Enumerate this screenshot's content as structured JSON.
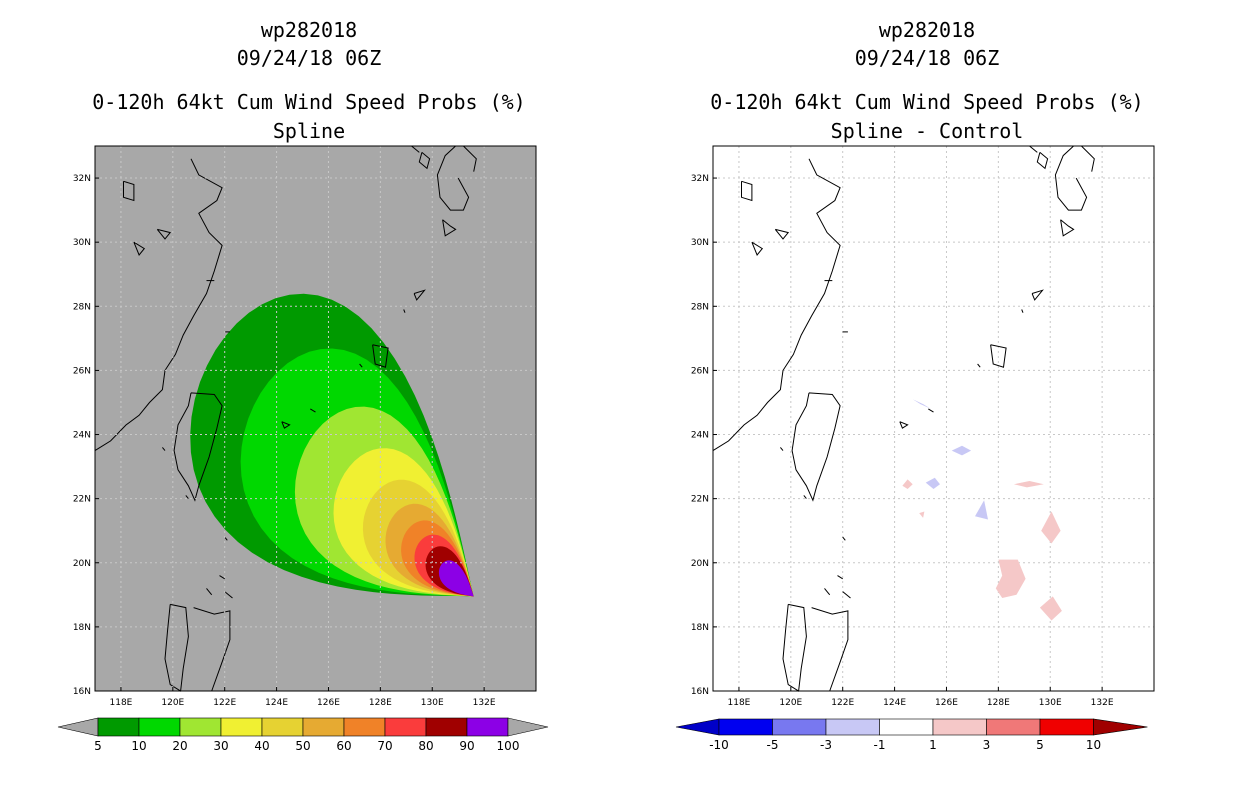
{
  "chart_data": [
    {
      "type": "heatmap",
      "panel": "left",
      "storm_id": "wp282018",
      "datetime": "09/24/18 06Z",
      "title": "0-120h 64kt Cum Wind Speed Probs (%)",
      "subtitle": "Spline",
      "x_range": [
        117,
        134
      ],
      "y_range": [
        16,
        33
      ],
      "x_ticks": [
        {
          "v": 118,
          "label": "118E"
        },
        {
          "v": 120,
          "label": "120E"
        },
        {
          "v": 122,
          "label": "122E"
        },
        {
          "v": 124,
          "label": "124E"
        },
        {
          "v": 126,
          "label": "126E"
        },
        {
          "v": 128,
          "label": "128E"
        },
        {
          "v": 130,
          "label": "130E"
        },
        {
          "v": 132,
          "label": "132E"
        }
      ],
      "y_ticks": [
        {
          "v": 16,
          "label": "16N"
        },
        {
          "v": 18,
          "label": "18N"
        },
        {
          "v": 20,
          "label": "20N"
        },
        {
          "v": 22,
          "label": "22N"
        },
        {
          "v": 24,
          "label": "24N"
        },
        {
          "v": 26,
          "label": "26N"
        },
        {
          "v": 28,
          "label": "28N"
        },
        {
          "v": 30,
          "label": "30N"
        },
        {
          "v": 32,
          "label": "32N"
        }
      ],
      "background": "#a8a8a8",
      "contour_levels": [
        5,
        10,
        20,
        30,
        40,
        50,
        60,
        70,
        80,
        90,
        100
      ],
      "colorbar_labels": [
        "5",
        "10",
        "20",
        "30",
        "40",
        "50",
        "60",
        "70",
        "80",
        "90",
        "100"
      ],
      "colorbar_colors": [
        "#009a00",
        "#00d800",
        "#a0e632",
        "#f0f032",
        "#e6d232",
        "#e6aa32",
        "#f08228",
        "#fa3c3c",
        "#a00000",
        "#8c00e6"
      ],
      "ellipse": {
        "center": [
          127.7,
          22.3
        ],
        "axis_dir": [
          -0.79,
          0.61
        ],
        "tip": [
          131.6,
          18.95
        ]
      },
      "contours": [
        {
          "level": 5,
          "a": 12.6,
          "b": 5.6,
          "color": "#009a00"
        },
        {
          "level": 10,
          "a": 10.4,
          "b": 4.5,
          "color": "#00d800"
        },
        {
          "level": 20,
          "a": 8.0,
          "b": 3.4,
          "color": "#a0e632"
        },
        {
          "level": 30,
          "a": 6.3,
          "b": 2.6,
          "color": "#f0f032"
        },
        {
          "level": 40,
          "a": 5.0,
          "b": 2.0,
          "color": "#e6d232"
        },
        {
          "level": 50,
          "a": 4.0,
          "b": 1.55,
          "color": "#e6aa32"
        },
        {
          "level": 60,
          "a": 3.3,
          "b": 1.25,
          "color": "#f08228"
        },
        {
          "level": 70,
          "a": 2.7,
          "b": 1.0,
          "color": "#fa3c3c"
        },
        {
          "level": 80,
          "a": 2.2,
          "b": 0.8,
          "color": "#a00000"
        },
        {
          "level": 90,
          "a": 1.6,
          "b": 0.55,
          "color": "#8c00e6"
        }
      ]
    },
    {
      "type": "heatmap",
      "panel": "right",
      "storm_id": "wp282018",
      "datetime": "09/24/18 06Z",
      "title": "0-120h 64kt Cum Wind Speed Probs (%)",
      "subtitle": "Spline - Control",
      "x_range": [
        117,
        134
      ],
      "y_range": [
        16,
        33
      ],
      "grid": true,
      "x_ticks": [
        {
          "v": 118,
          "label": "118E"
        },
        {
          "v": 120,
          "label": "120E"
        },
        {
          "v": 122,
          "label": "122E"
        },
        {
          "v": 124,
          "label": "124E"
        },
        {
          "v": 126,
          "label": "126E"
        },
        {
          "v": 128,
          "label": "128E"
        },
        {
          "v": 130,
          "label": "130E"
        },
        {
          "v": 132,
          "label": "132E"
        }
      ],
      "y_ticks": [
        {
          "v": 16,
          "label": "16N"
        },
        {
          "v": 18,
          "label": "18N"
        },
        {
          "v": 20,
          "label": "20N"
        },
        {
          "v": 22,
          "label": "22N"
        },
        {
          "v": 24,
          "label": "24N"
        },
        {
          "v": 26,
          "label": "26N"
        },
        {
          "v": 28,
          "label": "28N"
        },
        {
          "v": 30,
          "label": "30N"
        },
        {
          "v": 32,
          "label": "32N"
        }
      ],
      "colorbar_labels": [
        "-10",
        "-5",
        "-3",
        "-1",
        "1",
        "3",
        "5",
        "10"
      ],
      "colorbar_colors": [
        "#0000c8",
        "#0000f0",
        "#7878f0",
        "#c8c8f5",
        "#ffffff",
        "#f5c8c8",
        "#f07878",
        "#f00000",
        "#a00000"
      ],
      "difference_patches": [
        {
          "sign": "neg",
          "color": "#c8c8f5",
          "pts": [
            [
              124.7,
              25.1
            ],
            [
              125.1,
              24.95
            ],
            [
              125.4,
              24.8
            ],
            [
              125.0,
              24.95
            ]
          ]
        },
        {
          "sign": "neg",
          "color": "#c8c8f5",
          "pts": [
            [
              126.2,
              23.5
            ],
            [
              126.6,
              23.65
            ],
            [
              126.95,
              23.5
            ],
            [
              126.6,
              23.35
            ]
          ]
        },
        {
          "sign": "neg",
          "color": "#c8c8f5",
          "pts": [
            [
              125.2,
              22.5
            ],
            [
              125.55,
              22.65
            ],
            [
              125.75,
              22.45
            ],
            [
              125.5,
              22.3
            ]
          ]
        },
        {
          "sign": "neg",
          "color": "#c8c8f5",
          "pts": [
            [
              127.1,
              21.45
            ],
            [
              127.45,
              21.95
            ],
            [
              127.6,
              21.35
            ]
          ]
        },
        {
          "sign": "pos",
          "color": "#f5c8c8",
          "pts": [
            [
              124.3,
              22.4
            ],
            [
              124.5,
              22.6
            ],
            [
              124.7,
              22.45
            ],
            [
              124.5,
              22.3
            ]
          ]
        },
        {
          "sign": "pos",
          "color": "#f5c8c8",
          "pts": [
            [
              128.6,
              22.45
            ],
            [
              129.2,
              22.55
            ],
            [
              129.75,
              22.45
            ],
            [
              129.1,
              22.35
            ]
          ]
        },
        {
          "sign": "pos",
          "color": "#f5c8c8",
          "pts": [
            [
              124.95,
              21.55
            ],
            [
              125.15,
              21.6
            ],
            [
              125.1,
              21.4
            ]
          ]
        },
        {
          "sign": "pos",
          "color": "#f5c8c8",
          "pts": [
            [
              129.65,
              21.0
            ],
            [
              130.05,
              21.6
            ],
            [
              130.4,
              21.0
            ],
            [
              130.05,
              20.6
            ]
          ]
        },
        {
          "sign": "pos",
          "color": "#f5c8c8",
          "pts": [
            [
              128.0,
              20.1
            ],
            [
              128.75,
              20.1
            ],
            [
              129.05,
              19.5
            ],
            [
              128.7,
              19.0
            ],
            [
              128.15,
              18.9
            ],
            [
              127.9,
              19.2
            ],
            [
              128.15,
              19.6
            ]
          ]
        },
        {
          "sign": "pos",
          "color": "#f5c8c8",
          "pts": [
            [
              129.6,
              18.6
            ],
            [
              130.1,
              18.95
            ],
            [
              130.45,
              18.5
            ],
            [
              130.05,
              18.2
            ]
          ]
        }
      ]
    }
  ]
}
